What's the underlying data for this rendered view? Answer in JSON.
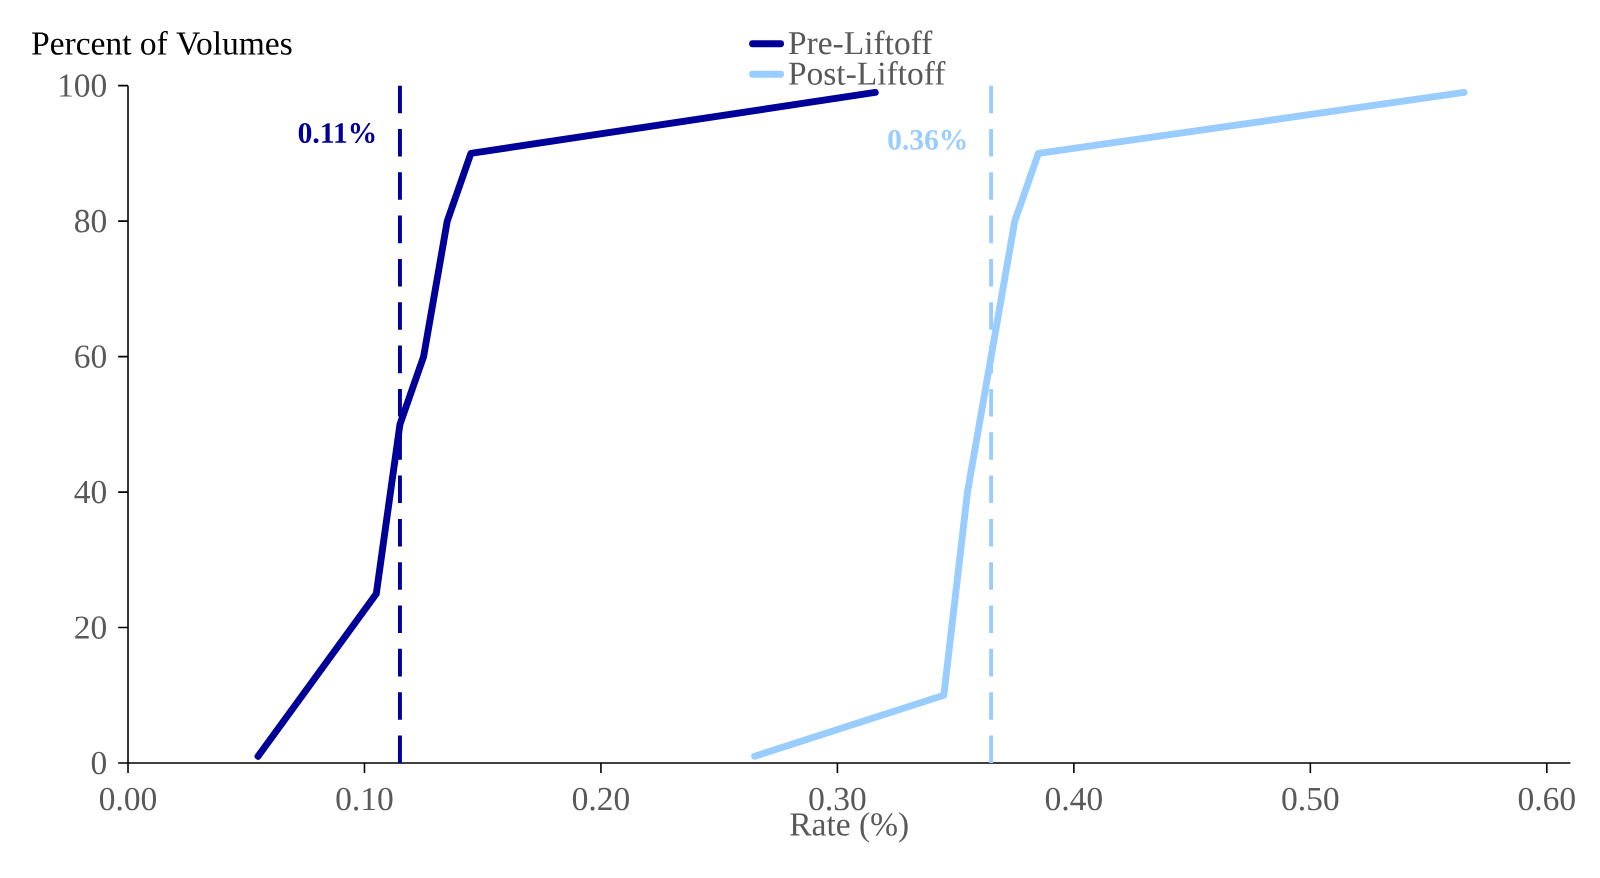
{
  "chart_data": {
    "type": "line",
    "ylabel": "Percent of Volumes",
    "xlabel": "Rate (%)",
    "series": [
      {
        "name": "Pre-Liftoff",
        "color": "#000099",
        "x": [
          0.055,
          0.105,
          0.115,
          0.125,
          0.135,
          0.145,
          0.316
        ],
        "values": [
          1,
          25,
          50,
          60,
          80,
          90,
          99
        ]
      },
      {
        "name": "Post-Liftoff",
        "color": "#99ccff",
        "x": [
          0.265,
          0.345,
          0.355,
          0.375,
          0.385,
          0.565
        ],
        "values": [
          1,
          10,
          40,
          80,
          90,
          99
        ]
      }
    ],
    "xlim": [
      0,
      0.61
    ],
    "ylim": [
      0,
      100
    ],
    "xticks": [
      {
        "value": 0,
        "label": "0.00"
      },
      {
        "value": 0.1,
        "label": "0.10"
      },
      {
        "value": 0.2,
        "label": "0.20"
      },
      {
        "value": 0.3,
        "label": "0.30"
      },
      {
        "value": 0.4,
        "label": "0.40"
      },
      {
        "value": 0.5,
        "label": "0.50"
      },
      {
        "value": 0.6,
        "label": "0.60"
      }
    ],
    "yticks": [
      0,
      20,
      40,
      60,
      80,
      100
    ],
    "ref_lines": [
      {
        "axis": "x",
        "value": 0.115,
        "label": "0.11%",
        "color": "#000099",
        "line_style": "dashed"
      },
      {
        "axis": "x",
        "value": 0.365,
        "label": "0.36%",
        "color": "#99ccff",
        "line_style": "dashed"
      }
    ],
    "legend": "top",
    "grid": false
  }
}
